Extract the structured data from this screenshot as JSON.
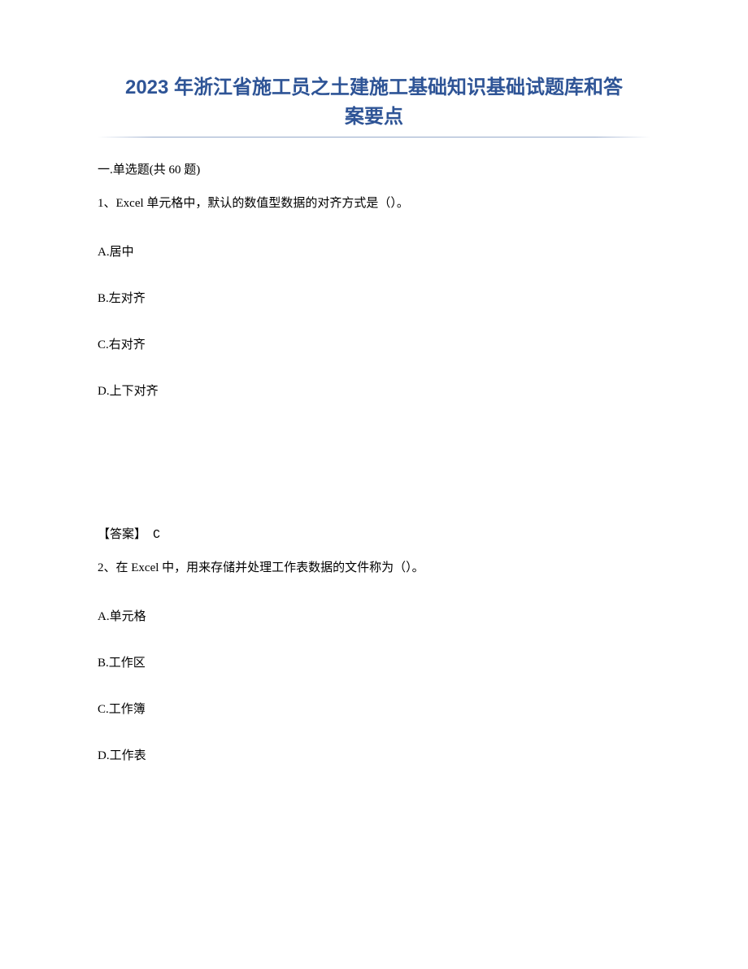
{
  "document": {
    "title_line1": "2023 年浙江省施工员之土建施工基础知识基础试题库和答",
    "title_line2": "案要点",
    "title_color": "#2e5496",
    "title_fontsize": 24,
    "section_header": "一.单选题(共 60 题)",
    "body_fontsize": 15,
    "body_color": "#000000",
    "background_color": "#ffffff",
    "questions": [
      {
        "number": "1、",
        "text": "Excel 单元格中，默认的数值型数据的对齐方式是（）。",
        "options": {
          "A": "A.居中",
          "B": "B.左对齐",
          "C": "C.右对齐",
          "D": "D.上下对齐"
        },
        "answer_label": "【答案】",
        "answer_value": "C"
      },
      {
        "number": "2、",
        "text": "在 Excel 中，用来存储并处理工作表数据的文件称为（）。",
        "options": {
          "A": "A.单元格",
          "B": "B.工作区",
          "C": "C.工作簿",
          "D": "D.工作表"
        }
      }
    ]
  }
}
